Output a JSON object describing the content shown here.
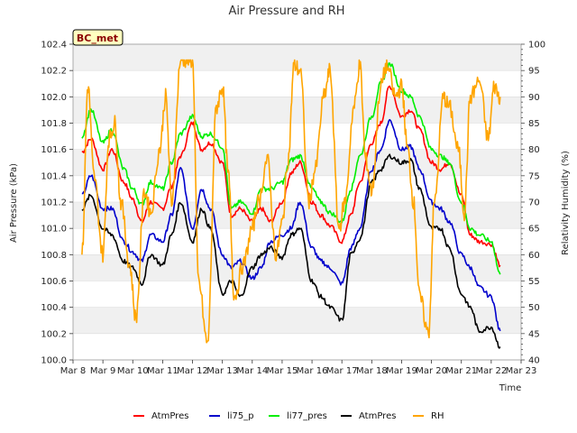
{
  "chart_data": {
    "type": "line",
    "title": "Air Pressure and RH",
    "xlabel": "Time",
    "ylabel": "Air Pressure (kPa)",
    "ylabel_right": "Relativity Humidity (%)",
    "badge": "BC_met",
    "x_ticks": [
      "Mar 8",
      "Mar 9",
      "Mar 10",
      "Mar 11",
      "Mar 12",
      "Mar 13",
      "Mar 14",
      "Mar 15",
      "Mar 16",
      "Mar 17",
      "Mar 18",
      "Mar 19",
      "Mar 20",
      "Mar 21",
      "Mar 22",
      "Mar 23"
    ],
    "xlim": [
      0,
      15
    ],
    "ylim": [
      100.0,
      102.4
    ],
    "y_ticks": [
      "100.0",
      "100.2",
      "100.4",
      "100.6",
      "100.8",
      "101.0",
      "101.2",
      "101.4",
      "101.6",
      "101.8",
      "102.0",
      "102.2",
      "102.4"
    ],
    "ylim_right": [
      40,
      100
    ],
    "y2_ticks": [
      "40",
      "45",
      "50",
      "55",
      "60",
      "65",
      "70",
      "75",
      "80",
      "85",
      "90",
      "95",
      "100"
    ],
    "legend_position": "bottom",
    "colors": {
      "AtmPres_red": "#ff0000",
      "li75_p": "#0000cc",
      "li77_pres": "#00ee00",
      "AtmPres_black": "#000000",
      "RH": "#ffa500"
    },
    "series": [
      {
        "name": "AtmPres",
        "axis": "left",
        "color": "#ff0000",
        "x": [
          0.3,
          0.6,
          1.0,
          1.3,
          1.7,
          2.0,
          2.3,
          2.6,
          3.0,
          3.3,
          3.6,
          4.0,
          4.3,
          4.6,
          5.0,
          5.3,
          5.6,
          6.0,
          6.3,
          6.6,
          7.0,
          7.3,
          7.6,
          8.0,
          8.3,
          8.6,
          9.0,
          9.3,
          9.6,
          10.0,
          10.3,
          10.6,
          11.0,
          11.3,
          11.6,
          12.0,
          12.3,
          12.6,
          13.0,
          13.3,
          13.6,
          14.0,
          14.3
        ],
        "values": [
          101.58,
          101.68,
          101.45,
          101.6,
          101.35,
          101.22,
          101.05,
          101.2,
          101.15,
          101.32,
          101.55,
          101.8,
          101.6,
          101.65,
          101.5,
          101.1,
          101.15,
          101.05,
          101.15,
          101.05,
          101.2,
          101.42,
          101.5,
          101.2,
          101.1,
          101.02,
          100.9,
          101.1,
          101.35,
          101.65,
          101.8,
          102.08,
          101.85,
          101.9,
          101.75,
          101.5,
          101.45,
          101.5,
          101.25,
          100.95,
          100.9,
          100.88,
          100.72
        ]
      },
      {
        "name": "li75_p",
        "axis": "left",
        "color": "#0000cc",
        "x": [
          0.3,
          0.6,
          1.0,
          1.3,
          1.7,
          2.0,
          2.3,
          2.6,
          3.0,
          3.3,
          3.6,
          4.0,
          4.3,
          4.6,
          5.0,
          5.3,
          5.6,
          6.0,
          6.3,
          6.6,
          7.0,
          7.3,
          7.6,
          8.0,
          8.3,
          8.6,
          9.0,
          9.3,
          9.6,
          10.0,
          10.3,
          10.6,
          11.0,
          11.3,
          11.6,
          12.0,
          12.3,
          12.6,
          13.0,
          13.3,
          13.6,
          14.0,
          14.3
        ],
        "values": [
          101.25,
          101.4,
          101.15,
          101.15,
          100.9,
          100.82,
          100.75,
          100.95,
          100.9,
          101.1,
          101.45,
          101.0,
          101.3,
          101.15,
          100.8,
          100.7,
          100.75,
          100.62,
          100.7,
          100.9,
          100.95,
          101.0,
          101.2,
          100.85,
          100.75,
          100.7,
          100.58,
          100.85,
          101.0,
          101.45,
          101.6,
          101.82,
          101.6,
          101.62,
          101.45,
          101.2,
          101.15,
          101.05,
          100.8,
          100.7,
          100.55,
          100.48,
          100.22
        ]
      },
      {
        "name": "li77_pres",
        "axis": "left",
        "color": "#00ee00",
        "x": [
          0.3,
          0.6,
          1.0,
          1.3,
          1.7,
          2.0,
          2.3,
          2.6,
          3.0,
          3.3,
          3.6,
          4.0,
          4.3,
          4.6,
          5.0,
          5.3,
          5.6,
          6.0,
          6.3,
          6.6,
          7.0,
          7.3,
          7.6,
          8.0,
          8.3,
          8.6,
          9.0,
          9.3,
          9.6,
          10.0,
          10.3,
          10.6,
          11.0,
          11.3,
          11.6,
          12.0,
          12.3,
          12.6,
          13.0,
          13.3,
          13.6,
          14.0,
          14.3
        ],
        "values": [
          101.7,
          101.9,
          101.65,
          101.75,
          101.45,
          101.3,
          101.18,
          101.35,
          101.3,
          101.5,
          101.72,
          101.85,
          101.7,
          101.72,
          101.62,
          101.15,
          101.2,
          101.12,
          101.3,
          101.3,
          101.35,
          101.52,
          101.55,
          101.3,
          101.2,
          101.12,
          101.05,
          101.3,
          101.55,
          101.85,
          102.1,
          102.25,
          102.05,
          102.0,
          101.85,
          101.6,
          101.55,
          101.5,
          101.2,
          101.0,
          100.95,
          100.9,
          100.65
        ]
      },
      {
        "name": "AtmPres",
        "axis": "left",
        "color": "#000000",
        "x": [
          0.3,
          0.6,
          1.0,
          1.3,
          1.7,
          2.0,
          2.3,
          2.6,
          3.0,
          3.3,
          3.6,
          4.0,
          4.3,
          4.6,
          5.0,
          5.3,
          5.6,
          6.0,
          6.3,
          6.6,
          7.0,
          7.3,
          7.6,
          8.0,
          8.3,
          8.6,
          9.0,
          9.3,
          9.6,
          10.0,
          10.3,
          10.6,
          11.0,
          11.3,
          11.6,
          12.0,
          12.3,
          12.6,
          13.0,
          13.3,
          13.6,
          14.0,
          14.3
        ],
        "values": [
          101.15,
          101.25,
          101.0,
          100.95,
          100.75,
          100.7,
          100.58,
          100.8,
          100.72,
          100.95,
          101.2,
          100.9,
          101.15,
          101.0,
          100.5,
          100.6,
          100.48,
          100.7,
          100.8,
          100.85,
          100.78,
          100.95,
          101.0,
          100.6,
          100.48,
          100.4,
          100.3,
          100.8,
          100.92,
          101.35,
          101.45,
          101.55,
          101.5,
          101.52,
          101.3,
          101.0,
          101.0,
          100.85,
          100.5,
          100.4,
          100.22,
          100.25,
          100.1
        ]
      },
      {
        "name": "RH",
        "axis": "right",
        "color": "#ffa500",
        "x": [
          0.3,
          0.5,
          0.7,
          1.0,
          1.2,
          1.4,
          1.6,
          1.9,
          2.1,
          2.4,
          2.6,
          2.9,
          3.1,
          3.3,
          3.6,
          3.8,
          4.0,
          4.2,
          4.5,
          4.8,
          5.0,
          5.2,
          5.4,
          5.7,
          6.0,
          6.2,
          6.5,
          6.8,
          7.0,
          7.2,
          7.4,
          7.6,
          7.9,
          8.1,
          8.4,
          8.6,
          8.9,
          9.1,
          9.4,
          9.6,
          9.8,
          10.0,
          10.3,
          10.5,
          10.8,
          11.0,
          11.2,
          11.4,
          11.6,
          11.9,
          12.1,
          12.4,
          12.6,
          12.9,
          13.1,
          13.3,
          13.6,
          13.9,
          14.1,
          14.3
        ],
        "values": [
          60,
          92,
          75,
          60,
          82,
          85,
          70,
          58,
          48,
          72,
          68,
          80,
          90,
          70,
          97,
          97,
          97,
          55,
          43,
          88,
          92,
          75,
          52,
          58,
          65,
          70,
          78,
          60,
          66,
          78,
          96,
          95,
          70,
          76,
          90,
          95,
          65,
          70,
          88,
          96,
          78,
          72,
          92,
          96,
          90,
          92,
          80,
          70,
          52,
          45,
          70,
          90,
          88,
          80,
          68,
          90,
          93,
          82,
          92,
          90
        ]
      }
    ]
  }
}
